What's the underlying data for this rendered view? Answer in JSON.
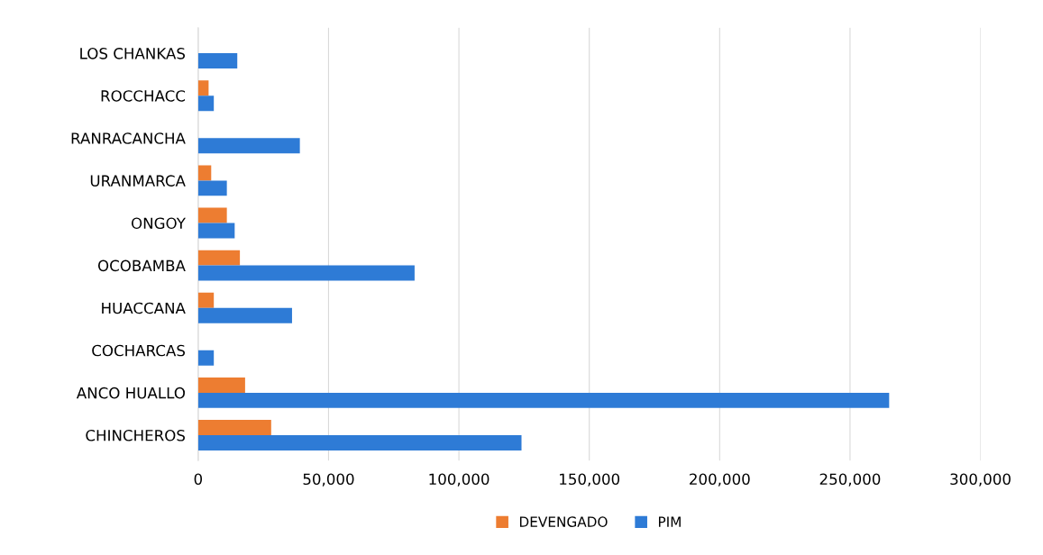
{
  "chart_data": {
    "type": "bar",
    "orientation": "horizontal",
    "categories": [
      "LOS CHANKAS",
      "ROCCHACC",
      "RANRACANCHA",
      "URANMARCA",
      "ONGOY",
      "OCOBAMBA",
      "HUACCANA",
      "COCHARCAS",
      "ANCO HUALLO",
      "CHINCHEROS"
    ],
    "series": [
      {
        "name": "DEVENGADO",
        "color": "#ed7d31",
        "values": [
          null,
          4000,
          null,
          5000,
          11000,
          16000,
          6000,
          null,
          18000,
          28000
        ]
      },
      {
        "name": "PIM",
        "color": "#2e7bd6",
        "values": [
          15000,
          6000,
          39000,
          11000,
          14000,
          83000,
          36000,
          6000,
          265000,
          124000
        ]
      }
    ],
    "xlim": [
      0,
      300000
    ],
    "xticks": [
      {
        "value": 0,
        "label": "0"
      },
      {
        "value": 50000,
        "label": "50,000"
      },
      {
        "value": 100000,
        "label": "100,000"
      },
      {
        "value": 150000,
        "label": "150,000"
      },
      {
        "value": 200000,
        "label": "200,000"
      },
      {
        "value": 250000,
        "label": "250,000"
      },
      {
        "value": 300000,
        "label": "300,000"
      }
    ],
    "grid": "x",
    "legend": "bottom"
  }
}
